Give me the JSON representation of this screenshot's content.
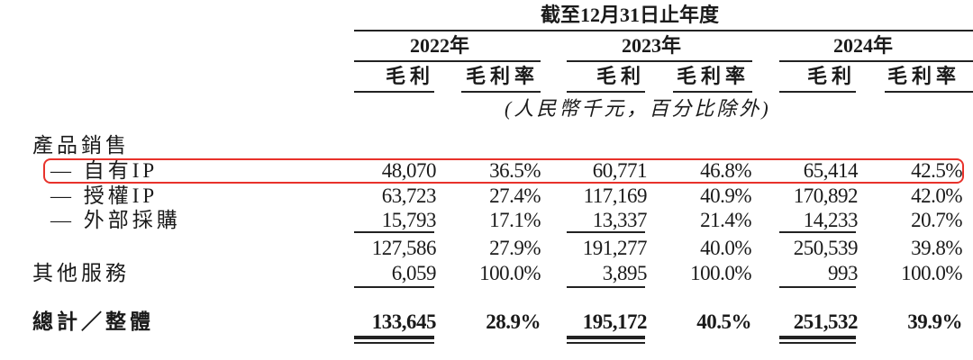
{
  "header": {
    "period": "截至12月31日止年度",
    "years": [
      "2022年",
      "2023年",
      "2024年"
    ],
    "subheaders": [
      "毛利",
      "毛利率",
      "毛利",
      "毛利率",
      "毛利",
      "毛利率"
    ],
    "unit_note": "(人民幣千元，百分比除外)"
  },
  "rows": [
    {
      "label": "產品銷售",
      "values": []
    },
    {
      "label": "— 自有IP",
      "values": [
        "48,070",
        "36.5%",
        "60,771",
        "46.8%",
        "65,414",
        "42.5%"
      ],
      "highlighted": true
    },
    {
      "label": "— 授權IP",
      "values": [
        "63,723",
        "27.4%",
        "117,169",
        "40.9%",
        "170,892",
        "42.0%"
      ]
    },
    {
      "label": "— 外部採購",
      "values": [
        "15,793",
        "17.1%",
        "13,337",
        "21.4%",
        "14,233",
        "20.7%"
      ]
    },
    {
      "label": "",
      "values": [
        "127,586",
        "27.9%",
        "191,277",
        "40.0%",
        "250,539",
        "39.8%"
      ]
    },
    {
      "label": "其他服務",
      "values": [
        "6,059",
        "100.0%",
        "3,895",
        "100.0%",
        "993",
        "100.0%"
      ]
    },
    {
      "label": "總計／整體",
      "values": [
        "133,645",
        "28.9%",
        "195,172",
        "40.5%",
        "251,532",
        "39.9%"
      ],
      "bold": true
    }
  ],
  "highlight_color": "#e8322b"
}
